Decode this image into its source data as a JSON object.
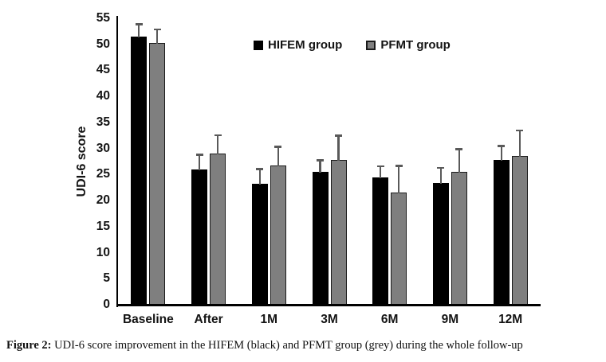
{
  "figure": {
    "caption_prefix": "Figure 2:",
    "caption_text": " UDI-6 score improvement in the HIFEM (black) and PFMT group (grey) during the whole follow-up"
  },
  "chart_data": {
    "type": "bar",
    "title": "",
    "xlabel": "",
    "ylabel": "UDI-6 score",
    "ylim": [
      0,
      55
    ],
    "ytick_step": 5,
    "grid": false,
    "legend_position": "top-center",
    "categories": [
      "Baseline",
      "After",
      "1M",
      "3M",
      "6M",
      "9M",
      "12M"
    ],
    "series": [
      {
        "name": "HIFEM group",
        "color": "#000000",
        "border_color": "#000000",
        "values": [
          51.5,
          26.0,
          23.2,
          25.5,
          24.5,
          23.3,
          27.8
        ],
        "errors_up": [
          2.4,
          2.8,
          2.9,
          2.3,
          2.1,
          3.0,
          2.7
        ]
      },
      {
        "name": "PFMT group",
        "color": "#7f7f7f",
        "border_color": "#1a1a1a",
        "values": [
          50.2,
          29.0,
          26.8,
          27.8,
          21.5,
          25.5,
          28.6
        ],
        "errors_up": [
          2.7,
          3.6,
          3.6,
          4.7,
          5.2,
          4.4,
          4.9
        ]
      }
    ],
    "error_bar_color": "#595959",
    "axis_color": "#000000"
  }
}
